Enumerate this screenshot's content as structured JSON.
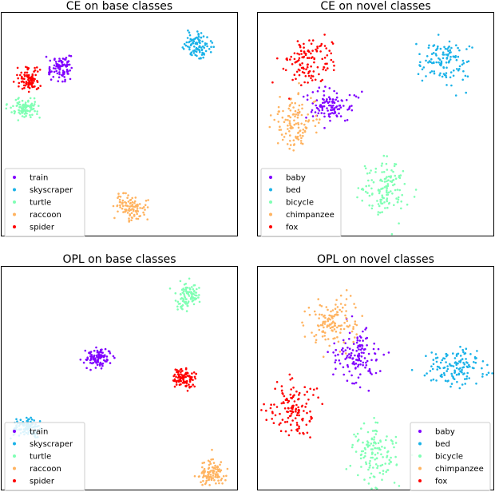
{
  "colors": {
    "purple": "#8000ff",
    "cyan": "#1ab2e8",
    "mint": "#80ffb4",
    "orange": "#ffb360",
    "red": "#ff0000"
  },
  "chart_data": [
    {
      "type": "scatter",
      "title": "CE on base classes",
      "xlabel": "",
      "ylabel": "",
      "xlim": [
        0,
        100
      ],
      "ylim": [
        0,
        100
      ],
      "grid": false,
      "legend_position": "lower-left",
      "legend": [
        "train",
        "skyscraper",
        "turtle",
        "raccoon",
        "spider"
      ],
      "series": [
        {
          "name": "train",
          "color": "#8000ff",
          "center": [
            25,
            75
          ],
          "spread": [
            2.6,
            2.6
          ],
          "count": 90
        },
        {
          "name": "skyscraper",
          "color": "#1ab2e8",
          "center": [
            83,
            85
          ],
          "spread": [
            3.0,
            2.6
          ],
          "count": 100
        },
        {
          "name": "turtle",
          "color": "#80ffb4",
          "center": [
            10,
            57
          ],
          "spread": [
            3.0,
            2.0
          ],
          "count": 100
        },
        {
          "name": "raccoon",
          "color": "#ffb360",
          "center": [
            55,
            13
          ],
          "spread": [
            3.2,
            2.8
          ],
          "count": 100
        },
        {
          "name": "spider",
          "color": "#ff0000",
          "center": [
            12,
            70
          ],
          "spread": [
            2.6,
            2.2
          ],
          "count": 90
        }
      ]
    },
    {
      "type": "scatter",
      "title": "CE on novel classes",
      "xlabel": "",
      "ylabel": "",
      "xlim": [
        0,
        100
      ],
      "ylim": [
        0,
        100
      ],
      "grid": false,
      "legend_position": "lower-left",
      "legend": [
        "baby",
        "bed",
        "bicycle",
        "chimpanzee",
        "fox"
      ],
      "series": [
        {
          "name": "baby",
          "color": "#8000ff",
          "center": [
            31,
            58
          ],
          "spread": [
            4.5,
            4.0
          ],
          "count": 110
        },
        {
          "name": "bed",
          "color": "#1ab2e8",
          "center": [
            79,
            78
          ],
          "spread": [
            5.0,
            5.0
          ],
          "count": 120
        },
        {
          "name": "bicycle",
          "color": "#80ffb4",
          "center": [
            55,
            21
          ],
          "spread": [
            5.5,
            6.5
          ],
          "count": 130
        },
        {
          "name": "chimpanzee",
          "color": "#ffb360",
          "center": [
            16,
            51
          ],
          "spread": [
            5.0,
            6.0
          ],
          "count": 120
        },
        {
          "name": "fox",
          "color": "#ff0000",
          "center": [
            22,
            77
          ],
          "spread": [
            5.0,
            5.5
          ],
          "count": 120
        }
      ]
    },
    {
      "type": "scatter",
      "title": "OPL on base classes",
      "xlabel": "",
      "ylabel": "",
      "xlim": [
        0,
        100
      ],
      "ylim": [
        0,
        100
      ],
      "grid": false,
      "legend_position": "lower-left",
      "legend": [
        "train",
        "skyscraper",
        "turtle",
        "raccoon",
        "spider"
      ],
      "series": [
        {
          "name": "train",
          "color": "#8000ff",
          "center": [
            41,
            59
          ],
          "spread": [
            2.6,
            2.0
          ],
          "count": 100
        },
        {
          "name": "skyscraper",
          "color": "#1ab2e8",
          "center": [
            11,
            28
          ],
          "spread": [
            3.0,
            2.5
          ],
          "count": 100
        },
        {
          "name": "turtle",
          "color": "#80ffb4",
          "center": [
            79,
            87
          ],
          "spread": [
            2.6,
            2.8
          ],
          "count": 100
        },
        {
          "name": "raccoon",
          "color": "#ffb360",
          "center": [
            89,
            8
          ],
          "spread": [
            3.0,
            2.8
          ],
          "count": 100
        },
        {
          "name": "spider",
          "color": "#ff0000",
          "center": [
            77,
            50
          ],
          "spread": [
            2.4,
            2.4
          ],
          "count": 100
        }
      ]
    },
    {
      "type": "scatter",
      "title": "OPL on novel classes",
      "xlabel": "",
      "ylabel": "",
      "xlim": [
        0,
        100
      ],
      "ylim": [
        0,
        100
      ],
      "grid": false,
      "legend_position": "lower-right",
      "legend": [
        "baby",
        "bed",
        "bicycle",
        "chimpanzee",
        "fox"
      ],
      "series": [
        {
          "name": "baby",
          "color": "#8000ff",
          "center": [
            42,
            60
          ],
          "spread": [
            5.0,
            5.5
          ],
          "count": 130
        },
        {
          "name": "bed",
          "color": "#1ab2e8",
          "center": [
            83,
            55
          ],
          "spread": [
            6.0,
            4.5
          ],
          "count": 130
        },
        {
          "name": "bicycle",
          "color": "#80ffb4",
          "center": [
            50,
            15
          ],
          "spread": [
            5.0,
            6.5
          ],
          "count": 130
        },
        {
          "name": "chimpanzee",
          "color": "#ffb360",
          "center": [
            32,
            75
          ],
          "spread": [
            5.5,
            5.0
          ],
          "count": 130
        },
        {
          "name": "fox",
          "color": "#ff0000",
          "center": [
            15,
            37
          ],
          "spread": [
            5.0,
            6.0
          ],
          "count": 130
        }
      ]
    }
  ]
}
